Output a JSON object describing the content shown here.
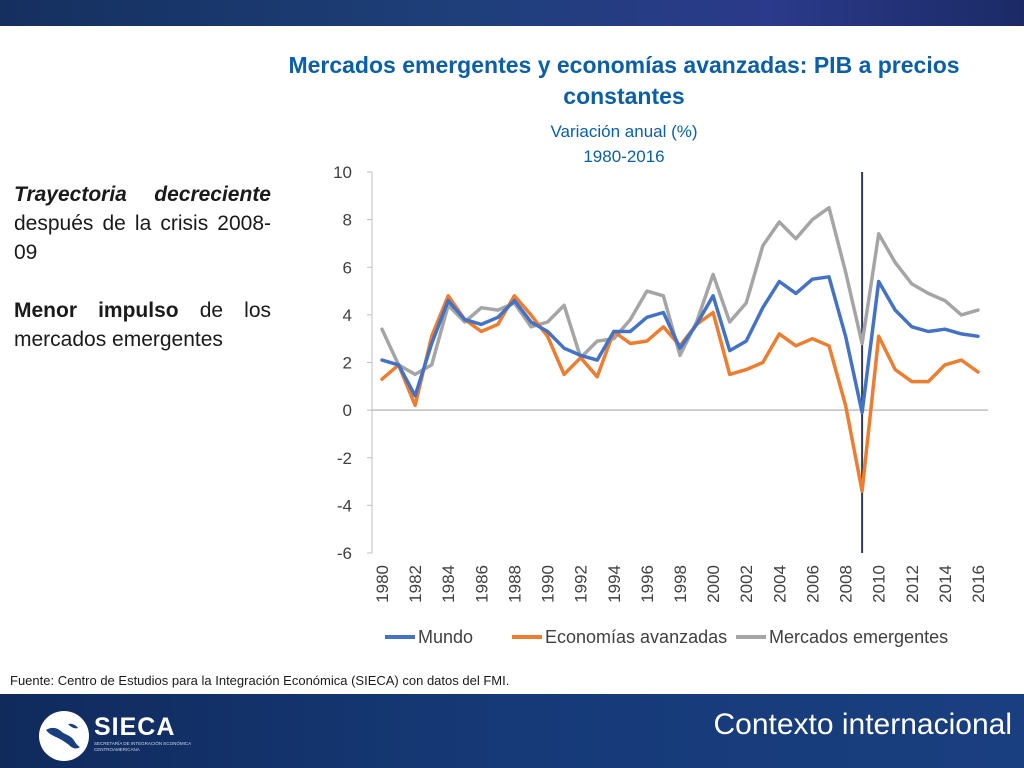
{
  "slide": {
    "title": "Mercados emergentes y economías avanzadas: PIB a precios constantes",
    "subtitle_line1": "Variación anual (%)",
    "subtitle_line2": "1980-2016",
    "side_note_1_bold": "Trayectoria decreciente",
    "side_note_1_rest": " después de la crisis 2008-09",
    "side_note_2_bold": "Menor impulso",
    "side_note_2_rest": " de los mercados emergentes",
    "source": "Fuente: Centro de Estudios para la Integración Económica (SIECA) con datos del FMI.",
    "footer_title": "Contexto internacional",
    "logo_name": "SIECA",
    "logo_tagline": "Secretaría de Integración Económica Centroamericana"
  },
  "colors": {
    "title": "#0b5ea8",
    "mundo": "#4472c4",
    "avanzadas": "#ed7d31",
    "emergentes": "#a5a5a5",
    "crisis_line": "#2f3b52",
    "footer": "#163a78"
  },
  "chart_data": {
    "type": "line",
    "x": [
      1980,
      1981,
      1982,
      1983,
      1984,
      1985,
      1986,
      1987,
      1988,
      1989,
      1990,
      1991,
      1992,
      1993,
      1994,
      1995,
      1996,
      1997,
      1998,
      1999,
      2000,
      2001,
      2002,
      2003,
      2004,
      2005,
      2006,
      2007,
      2008,
      2009,
      2010,
      2011,
      2012,
      2013,
      2014,
      2015,
      2016
    ],
    "x_tick_labels": [
      "1980",
      "1982",
      "1984",
      "1986",
      "1988",
      "1990",
      "1992",
      "1994",
      "1996",
      "1998",
      "2000",
      "2002",
      "2004",
      "2006",
      "2008",
      "2010",
      "2012",
      "2014",
      "2016"
    ],
    "y_ticks": [
      10,
      8,
      6,
      4,
      2,
      0,
      -2,
      -4,
      -6
    ],
    "ylim": [
      -6,
      10
    ],
    "series": [
      {
        "name": "Mundo",
        "values": [
          2.1,
          1.9,
          0.6,
          2.8,
          4.6,
          3.8,
          3.6,
          3.9,
          4.6,
          3.7,
          3.3,
          2.6,
          2.3,
          2.1,
          3.3,
          3.3,
          3.9,
          4.1,
          2.6,
          3.6,
          4.8,
          2.5,
          2.9,
          4.3,
          5.4,
          4.9,
          5.5,
          5.6,
          3.1,
          -0.1,
          5.4,
          4.2,
          3.5,
          3.3,
          3.4,
          3.2,
          3.1
        ]
      },
      {
        "name": "Economías avanzadas",
        "values": [
          1.3,
          1.9,
          0.2,
          3.1,
          4.8,
          3.8,
          3.3,
          3.6,
          4.8,
          4.0,
          3.1,
          1.5,
          2.2,
          1.4,
          3.3,
          2.8,
          2.9,
          3.5,
          2.7,
          3.6,
          4.1,
          1.5,
          1.7,
          2.0,
          3.2,
          2.7,
          3.0,
          2.7,
          0.2,
          -3.4,
          3.1,
          1.7,
          1.2,
          1.2,
          1.9,
          2.1,
          1.6
        ]
      },
      {
        "name": "Mercados emergentes",
        "values": [
          3.4,
          1.9,
          1.5,
          1.9,
          4.4,
          3.7,
          4.3,
          4.2,
          4.5,
          3.5,
          3.7,
          4.4,
          2.2,
          2.9,
          3.0,
          3.8,
          5.0,
          4.8,
          2.3,
          3.7,
          5.7,
          3.7,
          4.5,
          6.9,
          7.9,
          7.2,
          8.0,
          8.5,
          5.8,
          2.8,
          7.4,
          6.2,
          5.3,
          4.9,
          4.6,
          4.0,
          4.2
        ]
      }
    ],
    "crisis_marker_year": 2009,
    "legend_position": "bottom",
    "grid": false
  }
}
